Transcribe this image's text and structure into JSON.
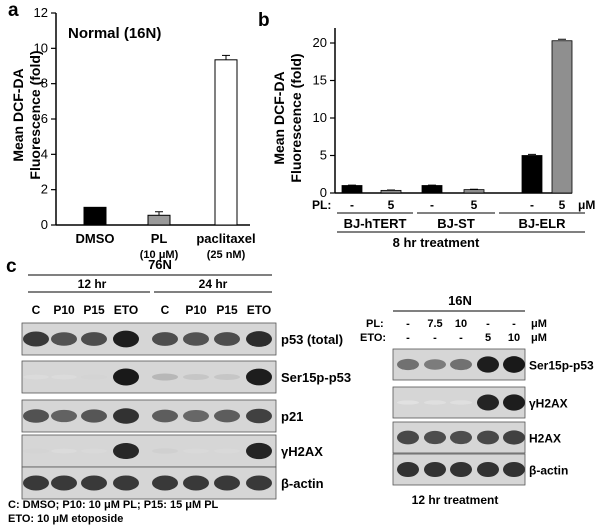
{
  "panels": {
    "a": {
      "letter": "a",
      "title": "Normal (16N)",
      "ylabel_line1": "Mean DCF-DA",
      "ylabel_line2": "Fluorescence (fold)",
      "chart_data": {
        "type": "bar",
        "title": "Normal (16N)",
        "ylabel": "Mean DCF-DA Fluorescence (fold)",
        "ylim": [
          0,
          12
        ],
        "yticks": [
          "0",
          "2",
          "4",
          "6",
          "8",
          "10",
          "12"
        ],
        "categories": [
          {
            "name": "DMSO",
            "sub": ""
          },
          {
            "name": "PL",
            "sub": "(10 μM)"
          },
          {
            "name": "paclitaxel",
            "sub": "(25 nM)"
          }
        ],
        "values": [
          1.0,
          0.55,
          9.35
        ],
        "errors": [
          0.0,
          0.2,
          0.25
        ],
        "colors": [
          "#000000",
          "#9a9a9a",
          "#ffffff"
        ]
      }
    },
    "b": {
      "letter": "b",
      "ylabel_line1": "Mean DCF-DA",
      "ylabel_line2": "Fluorescence (fold)",
      "pl_label": "PL:",
      "pl_values": [
        "-",
        "5",
        "-",
        "5",
        "-",
        "5"
      ],
      "pl_unit": "μM",
      "groups": [
        "BJ-hTERT",
        "BJ-ST",
        "BJ-ELR"
      ],
      "footer": "8 hr treatment",
      "chart_data": {
        "type": "bar",
        "ylabel": "Mean DCF-DA Fluorescence (fold)",
        "ylim": [
          0,
          22
        ],
        "yticks": [
          "0",
          "5",
          "10",
          "15",
          "20"
        ],
        "categories": [
          "BJ-hTERT -",
          "BJ-hTERT 5",
          "BJ-ST -",
          "BJ-ST 5",
          "BJ-ELR -",
          "BJ-ELR 5"
        ],
        "values": [
          1.0,
          0.35,
          1.0,
          0.45,
          5.0,
          20.3
        ],
        "errors": [
          0.05,
          0.05,
          0.05,
          0.05,
          0.15,
          0.2
        ],
        "colors": [
          "#000000",
          "#8f8f8f",
          "#000000",
          "#8f8f8f",
          "#000000",
          "#8f8f8f"
        ]
      }
    },
    "c": {
      "letter": "c",
      "left": {
        "cell_line": "76N",
        "time1": "12 hr",
        "time2": "24 hr",
        "lanes": [
          "C",
          "P10",
          "P15",
          "ETO",
          "C",
          "P10",
          "P15",
          "ETO"
        ],
        "rows": [
          {
            "label": "p53 (total)",
            "bands": [
              0.82,
              0.7,
              0.72,
              0.95,
              0.72,
              0.7,
              0.72,
              0.88
            ]
          },
          {
            "label": "Ser15p-p53",
            "bands": [
              0.05,
              0.05,
              0.08,
              0.97,
              0.22,
              0.15,
              0.15,
              0.95
            ]
          },
          {
            "label": "p21",
            "bands": [
              0.7,
              0.62,
              0.68,
              0.85,
              0.65,
              0.6,
              0.65,
              0.78
            ]
          },
          {
            "label": "γH2AX",
            "bands": [
              0.08,
              0.05,
              0.06,
              0.9,
              0.1,
              0.06,
              0.06,
              0.92
            ]
          },
          {
            "label": "β-actin",
            "bands": [
              0.82,
              0.82,
              0.82,
              0.82,
              0.82,
              0.82,
              0.82,
              0.82
            ]
          }
        ],
        "legend_line1": "C: DMSO; P10: 10 μM PL; P15: 15 μM PL",
        "legend_line2": "ETO: 10 μM etoposide"
      },
      "right": {
        "cell_line": "16N",
        "pl_label": "PL:",
        "pl_values": [
          "-",
          "7.5",
          "10",
          "-",
          "-"
        ],
        "eto_label": "ETO:",
        "eto_values": [
          "-",
          "-",
          "-",
          "5",
          "10"
        ],
        "unit": "μM",
        "rows": [
          {
            "label": "Ser15p-p53",
            "bands": [
              0.55,
              0.5,
              0.55,
              0.95,
              0.97
            ]
          },
          {
            "label": "γH2AX",
            "bands": [
              0.02,
              0.03,
              0.03,
              0.92,
              0.95
            ]
          },
          {
            "label": "H2AX",
            "bands": [
              0.75,
              0.72,
              0.72,
              0.75,
              0.78
            ]
          },
          {
            "label": "β-actin",
            "bands": [
              0.85,
              0.85,
              0.85,
              0.85,
              0.85
            ]
          }
        ],
        "footer": "12 hr treatment"
      }
    }
  }
}
